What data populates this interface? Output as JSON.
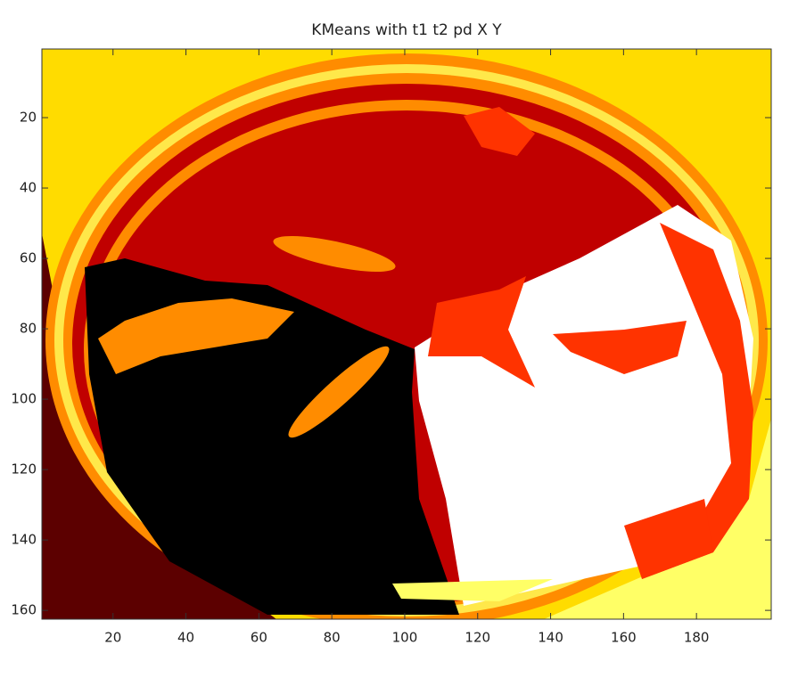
{
  "chart_data": {
    "type": "image",
    "title": "KMeans with t1 t2 pd X Y",
    "xlim": [
      0.5,
      200.5
    ],
    "ylim": [
      0.5,
      162.5
    ],
    "y_reversed": true,
    "xticks": [
      20,
      40,
      60,
      80,
      100,
      120,
      140,
      160,
      180
    ],
    "yticks": [
      20,
      40,
      60,
      80,
      100,
      120,
      140,
      160
    ]
  }
}
